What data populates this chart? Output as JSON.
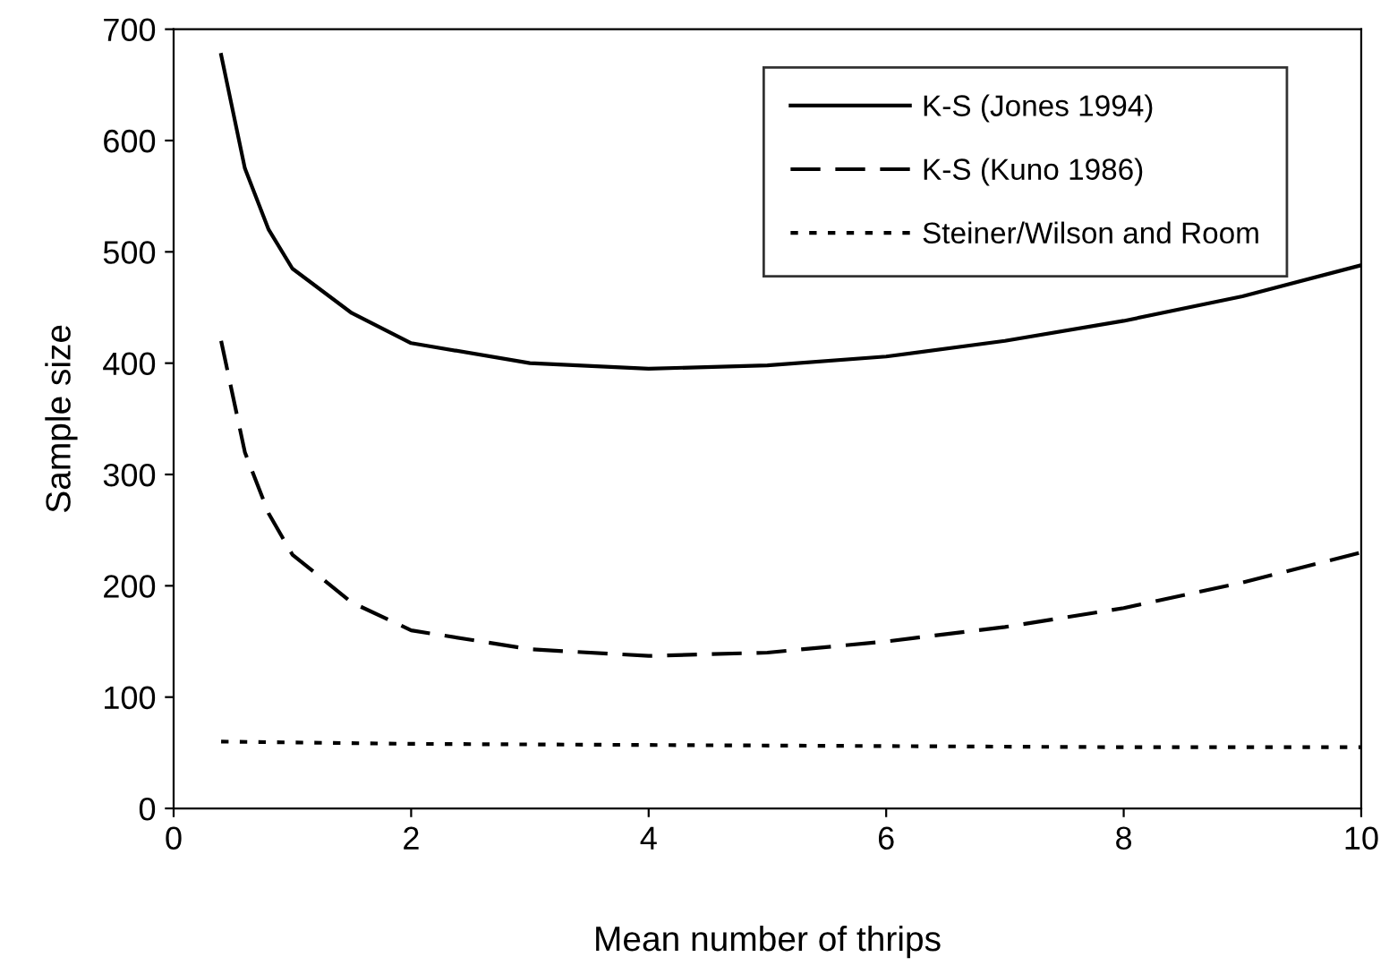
{
  "chart_data": {
    "type": "line",
    "xlabel": "Mean number of thrips",
    "ylabel": "Sample size",
    "xlim": [
      0,
      10
    ],
    "ylim": [
      0,
      700
    ],
    "xticks": [
      0,
      2,
      4,
      6,
      8,
      10
    ],
    "yticks": [
      0,
      100,
      200,
      300,
      400,
      500,
      600,
      700
    ],
    "grid": false,
    "legend": "top right",
    "marker": "none",
    "series": [
      {
        "name": "K-S (Jones 1994)",
        "color": "#000000",
        "line_style": "solid",
        "x": [
          0.4,
          0.6,
          0.8,
          1,
          1.5,
          2,
          3,
          4,
          5,
          6,
          7,
          8,
          9,
          10
        ],
        "values": [
          677,
          575,
          520,
          485,
          445,
          418,
          400,
          395,
          398,
          406,
          420,
          438,
          460,
          488
        ]
      },
      {
        "name": "K-S (Kuno 1986)",
        "color": "#000000",
        "line_style": "dashed",
        "x": [
          0.4,
          0.6,
          0.8,
          1,
          1.5,
          2,
          3,
          4,
          5,
          6,
          7,
          8,
          9,
          10
        ],
        "values": [
          420,
          320,
          265,
          228,
          185,
          160,
          143,
          137,
          140,
          150,
          163,
          180,
          203,
          230
        ]
      },
      {
        "name": "Steiner/Wilson and Room",
        "color": "#000000",
        "line_style": "dotted",
        "x": [
          0.4,
          2,
          4,
          6,
          8,
          10
        ],
        "values": [
          60,
          58,
          57,
          56,
          55,
          55
        ]
      }
    ]
  }
}
